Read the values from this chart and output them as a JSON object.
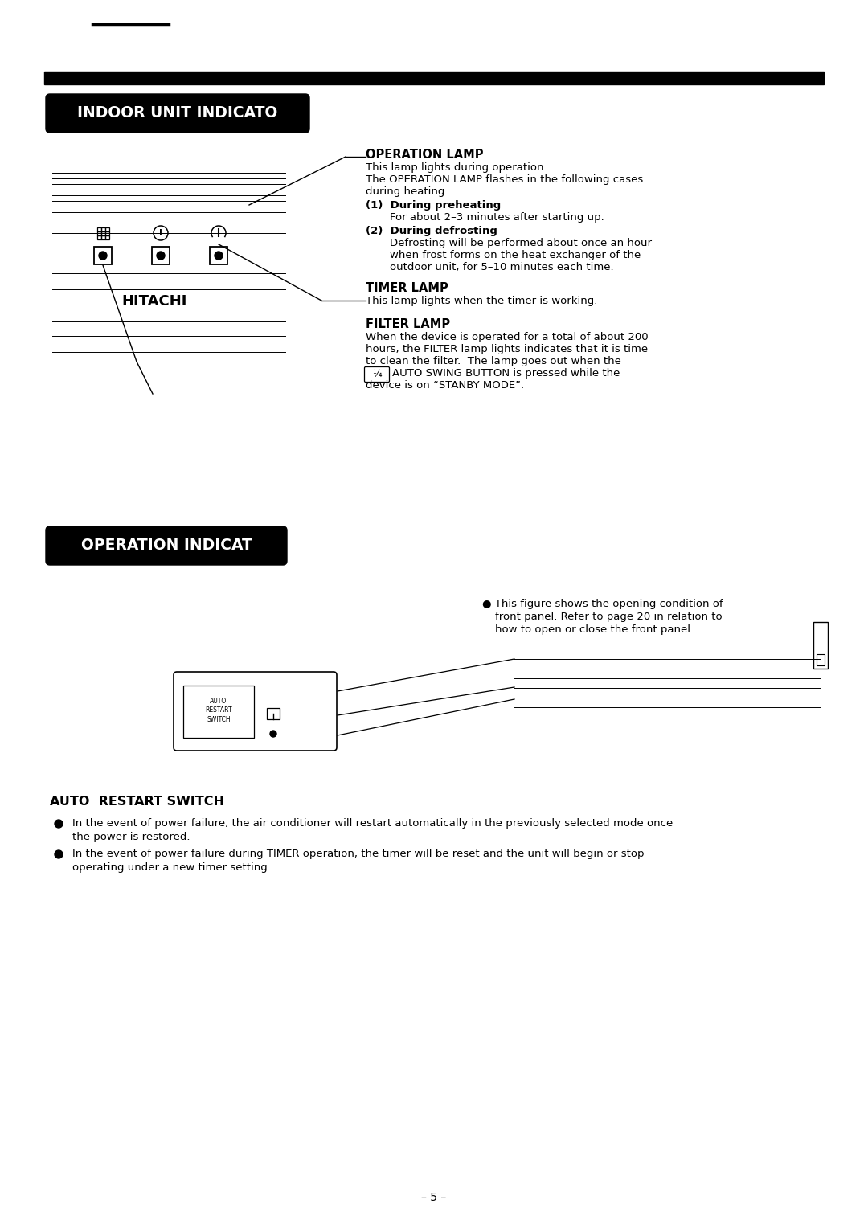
{
  "section1_label": "INDOOR UNIT INDICATO",
  "section2_label": "OPERATION INDICAT",
  "hitachi_label": "HITACHI",
  "op_lamp_title": "OPERATION LAMP",
  "op_lamp_line1": "This lamp lights during operation.",
  "op_lamp_line2": "The OPERATION LAMP flashes in the following cases",
  "op_lamp_line3": "during heating.",
  "op_lamp_item1": "(1)  During preheating",
  "op_lamp_item1_txt": "For about 2–3 minutes after starting up.",
  "op_lamp_item2": "(2)  During defrosting",
  "op_lamp_item2_txt1": "Defrosting will be performed about once an hour",
  "op_lamp_item2_txt2": "when frost forms on the heat exchanger of the",
  "op_lamp_item2_txt3": "outdoor unit, for 5–10 minutes each time.",
  "timer_lamp_title": "TIMER LAMP",
  "timer_lamp_text": "This lamp lights when the timer is working.",
  "filter_lamp_title": "FILTER LAMP",
  "filter_lamp_l1": "When the device is operated for a total of about 200",
  "filter_lamp_l2": "hours, the FILTER lamp lights indicates that it is time",
  "filter_lamp_l3": "to clean the filter.  The lamp goes out when the",
  "filter_lamp_l4": "AUTO SWING BUTTON is pressed while the",
  "filter_lamp_l5": "device is on “STANBY MODE”.",
  "opening_line1": "● This figure shows the opening condition of",
  "opening_line2": "front panel. Refer to page 20 in relation to",
  "opening_line3": "how to open or close the front panel.",
  "auto_restart_title": "AUTO  RESTART SWITCH",
  "ar_bullet1_l1": "In the event of power failure, the air conditioner will restart automatically in the previously selected mode once",
  "ar_bullet1_l2": "the power is restored.",
  "ar_bullet2_l1": "In the event of power failure during TIMER operation, the timer will be reset and the unit will begin or stop",
  "ar_bullet2_l2": "operating under a new timer setting.",
  "page_number": "– 5 –"
}
